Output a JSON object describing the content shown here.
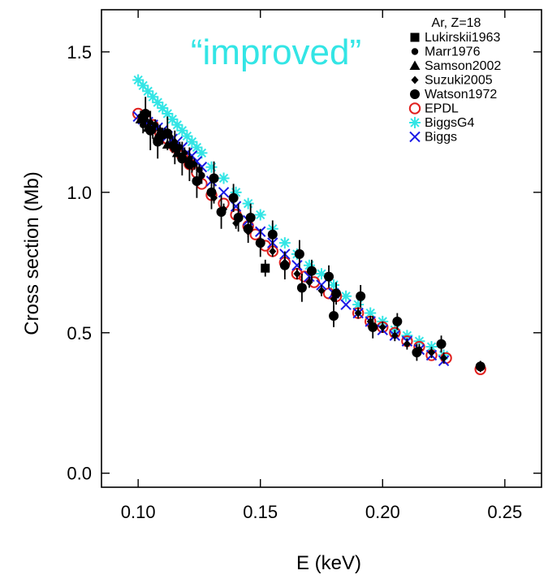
{
  "chart_data": {
    "type": "scatter",
    "title": "",
    "xlabel": "E (keV)",
    "ylabel": "Cross section   (Mb)",
    "xlim": [
      0.085,
      0.265
    ],
    "ylim": [
      -0.05,
      1.65
    ],
    "xticks": [
      "0.10",
      "0.15",
      "0.20",
      "0.25"
    ],
    "yticks": [
      "0.0",
      "0.5",
      "1.0",
      "1.5"
    ],
    "grid": false,
    "legend_title": "Ar, Z=18",
    "legend_position": "top-right",
    "annotation": {
      "text": "“improved”",
      "color": "#33e5e5"
    },
    "series": [
      {
        "name": "Lukirskii1963",
        "marker": "square",
        "color": "#000000",
        "points": [
          [
            0.152,
            0.73
          ]
        ],
        "err": [
          0.03
        ]
      },
      {
        "name": "Marr1976",
        "marker": "dot-small",
        "color": "#000000",
        "points": [
          [
            0.102,
            1.24
          ],
          [
            0.106,
            1.22
          ],
          [
            0.11,
            1.2
          ],
          [
            0.114,
            1.17
          ],
          [
            0.118,
            1.13
          ],
          [
            0.122,
            1.1
          ],
          [
            0.126,
            1.06
          ]
        ],
        "err": [
          0.03,
          0.03,
          0.03,
          0.03,
          0.03,
          0.03,
          0.03
        ]
      },
      {
        "name": "Samson2002",
        "marker": "triangle",
        "color": "#000000",
        "points": [
          [
            0.101,
            1.26
          ],
          [
            0.104,
            1.23
          ],
          [
            0.108,
            1.2
          ],
          [
            0.112,
            1.17
          ],
          [
            0.116,
            1.14
          ]
        ],
        "err": [
          0,
          0,
          0,
          0,
          0
        ]
      },
      {
        "name": "Suzuki2005",
        "marker": "diamond",
        "color": "#000000",
        "points": [
          [
            0.101,
            1.27
          ],
          [
            0.103,
            1.26
          ],
          [
            0.105,
            1.25
          ],
          [
            0.107,
            1.24
          ],
          [
            0.109,
            1.22
          ],
          [
            0.111,
            1.21
          ],
          [
            0.113,
            1.2
          ],
          [
            0.115,
            1.18
          ],
          [
            0.117,
            1.16
          ],
          [
            0.119,
            1.14
          ],
          [
            0.121,
            1.12
          ],
          [
            0.123,
            1.1
          ],
          [
            0.125,
            1.08
          ],
          [
            0.131,
            0.98
          ],
          [
            0.135,
            0.94
          ],
          [
            0.14,
            0.89
          ],
          [
            0.145,
            0.86
          ],
          [
            0.15,
            0.82
          ],
          [
            0.155,
            0.79
          ],
          [
            0.16,
            0.75
          ],
          [
            0.165,
            0.71
          ],
          [
            0.17,
            0.68
          ],
          [
            0.175,
            0.65
          ],
          [
            0.18,
            0.62
          ],
          [
            0.19,
            0.57
          ],
          [
            0.195,
            0.54
          ],
          [
            0.2,
            0.52
          ],
          [
            0.205,
            0.49
          ],
          [
            0.21,
            0.46
          ],
          [
            0.215,
            0.44
          ],
          [
            0.22,
            0.43
          ],
          [
            0.225,
            0.41
          ]
        ],
        "err": [
          0.02,
          0.02,
          0.02,
          0.02,
          0.02,
          0.02,
          0.02,
          0.02,
          0.02,
          0.02,
          0.02,
          0.02,
          0.02,
          0.02,
          0.02,
          0.02,
          0.02,
          0.02,
          0.02,
          0.02,
          0.02,
          0.02,
          0.02,
          0.02,
          0.02,
          0.02,
          0.02,
          0.02,
          0.02,
          0.02,
          0.02,
          0.02
        ]
      },
      {
        "name": "Watson1972",
        "marker": "dot-large",
        "color": "#000000",
        "points": [
          [
            0.103,
            1.28
          ],
          [
            0.105,
            1.22
          ],
          [
            0.108,
            1.18
          ],
          [
            0.112,
            1.21
          ],
          [
            0.115,
            1.16
          ],
          [
            0.118,
            1.12
          ],
          [
            0.121,
            1.1
          ],
          [
            0.124,
            1.04
          ],
          [
            0.13,
            1.0
          ],
          [
            0.131,
            1.05
          ],
          [
            0.134,
            0.93
          ],
          [
            0.139,
            0.98
          ],
          [
            0.141,
            0.91
          ],
          [
            0.145,
            0.87
          ],
          [
            0.146,
            0.91
          ],
          [
            0.15,
            0.82
          ],
          [
            0.155,
            0.85
          ],
          [
            0.16,
            0.74
          ],
          [
            0.166,
            0.78
          ],
          [
            0.167,
            0.66
          ],
          [
            0.171,
            0.72
          ],
          [
            0.178,
            0.7
          ],
          [
            0.18,
            0.56
          ],
          [
            0.181,
            0.64
          ],
          [
            0.191,
            0.63
          ],
          [
            0.196,
            0.52
          ],
          [
            0.206,
            0.54
          ],
          [
            0.214,
            0.43
          ],
          [
            0.224,
            0.46
          ],
          [
            0.24,
            0.38
          ]
        ],
        "err": [
          0.06,
          0.07,
          0.06,
          0.06,
          0.06,
          0.06,
          0.06,
          0.06,
          0.06,
          0.06,
          0.06,
          0.05,
          0.05,
          0.05,
          0.05,
          0.05,
          0.05,
          0.05,
          0.05,
          0.05,
          0.04,
          0.04,
          0.04,
          0.04,
          0.04,
          0.04,
          0.03,
          0.03,
          0.03,
          0.02
        ]
      },
      {
        "name": "EPDL",
        "marker": "circle-open",
        "color": "#e0201e",
        "points": [
          [
            0.1,
            1.28
          ],
          [
            0.103,
            1.26
          ],
          [
            0.106,
            1.24
          ],
          [
            0.109,
            1.21
          ],
          [
            0.112,
            1.19
          ],
          [
            0.115,
            1.16
          ],
          [
            0.118,
            1.13
          ],
          [
            0.121,
            1.1
          ],
          [
            0.124,
            1.07
          ],
          [
            0.126,
            1.03
          ],
          [
            0.13,
            0.99
          ],
          [
            0.135,
            0.96
          ],
          [
            0.14,
            0.92
          ],
          [
            0.145,
            0.88
          ],
          [
            0.148,
            0.85
          ],
          [
            0.152,
            0.81
          ],
          [
            0.155,
            0.79
          ],
          [
            0.16,
            0.75
          ],
          [
            0.165,
            0.71
          ],
          [
            0.168,
            0.7
          ],
          [
            0.172,
            0.68
          ],
          [
            0.178,
            0.64
          ],
          [
            0.181,
            0.63
          ],
          [
            0.19,
            0.57
          ],
          [
            0.195,
            0.54
          ],
          [
            0.2,
            0.52
          ],
          [
            0.205,
            0.5
          ],
          [
            0.21,
            0.47
          ],
          [
            0.215,
            0.45
          ],
          [
            0.22,
            0.42
          ],
          [
            0.226,
            0.41
          ],
          [
            0.24,
            0.37
          ]
        ],
        "err": []
      },
      {
        "name": "BiggsG4",
        "marker": "asterisk",
        "color": "#33e5e5",
        "points": [
          [
            0.1,
            1.4
          ],
          [
            0.102,
            1.38
          ],
          [
            0.104,
            1.36
          ],
          [
            0.106,
            1.34
          ],
          [
            0.108,
            1.32
          ],
          [
            0.11,
            1.3
          ],
          [
            0.112,
            1.28
          ],
          [
            0.114,
            1.26
          ],
          [
            0.116,
            1.24
          ],
          [
            0.118,
            1.22
          ],
          [
            0.12,
            1.2
          ],
          [
            0.122,
            1.18
          ],
          [
            0.124,
            1.16
          ],
          [
            0.126,
            1.14
          ],
          [
            0.13,
            1.09
          ],
          [
            0.135,
            1.05
          ],
          [
            0.14,
            1.0
          ],
          [
            0.145,
            0.96
          ],
          [
            0.15,
            0.92
          ],
          [
            0.155,
            0.87
          ],
          [
            0.16,
            0.82
          ],
          [
            0.165,
            0.78
          ],
          [
            0.17,
            0.74
          ],
          [
            0.175,
            0.71
          ],
          [
            0.18,
            0.67
          ],
          [
            0.185,
            0.63
          ],
          [
            0.19,
            0.6
          ],
          [
            0.195,
            0.57
          ],
          [
            0.2,
            0.54
          ],
          [
            0.205,
            0.51
          ],
          [
            0.21,
            0.49
          ],
          [
            0.215,
            0.47
          ],
          [
            0.22,
            0.45
          ],
          [
            0.225,
            0.42
          ]
        ],
        "err": []
      },
      {
        "name": "Biggs",
        "marker": "cross",
        "color": "#1a1ae6",
        "points": [
          [
            0.1,
            1.27
          ],
          [
            0.102,
            1.26
          ],
          [
            0.104,
            1.25
          ],
          [
            0.106,
            1.24
          ],
          [
            0.108,
            1.23
          ],
          [
            0.11,
            1.22
          ],
          [
            0.112,
            1.2
          ],
          [
            0.114,
            1.19
          ],
          [
            0.116,
            1.18
          ],
          [
            0.118,
            1.16
          ],
          [
            0.12,
            1.14
          ],
          [
            0.122,
            1.13
          ],
          [
            0.124,
            1.11
          ],
          [
            0.126,
            1.09
          ],
          [
            0.13,
            1.04
          ],
          [
            0.135,
            1.0
          ],
          [
            0.14,
            0.95
          ],
          [
            0.145,
            0.9
          ],
          [
            0.15,
            0.86
          ],
          [
            0.155,
            0.82
          ],
          [
            0.16,
            0.78
          ],
          [
            0.165,
            0.74
          ],
          [
            0.17,
            0.7
          ],
          [
            0.175,
            0.67
          ],
          [
            0.18,
            0.64
          ],
          [
            0.185,
            0.6
          ],
          [
            0.19,
            0.57
          ],
          [
            0.195,
            0.54
          ],
          [
            0.2,
            0.51
          ],
          [
            0.205,
            0.49
          ],
          [
            0.21,
            0.47
          ],
          [
            0.215,
            0.44
          ],
          [
            0.22,
            0.42
          ],
          [
            0.225,
            0.4
          ]
        ],
        "err": []
      }
    ]
  }
}
